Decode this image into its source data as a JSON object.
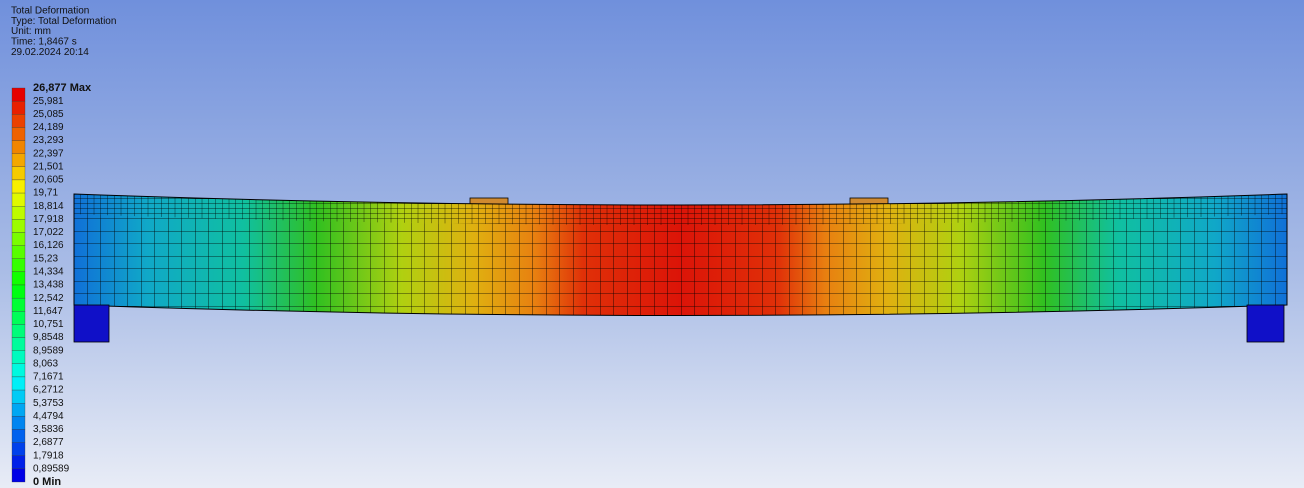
{
  "header": {
    "lines": [
      "Total Deformation",
      "Type: Total Deformation",
      "Unit: mm",
      "Time: 1,8467 s",
      "29.02.2024 20:14"
    ]
  },
  "legend": {
    "labels": [
      "26,877 Max",
      "25,981",
      "25,085",
      "24,189",
      "23,293",
      "22,397",
      "21,501",
      "20,605",
      "19,71",
      "18,814",
      "17,918",
      "17,022",
      "16,126",
      "15,23",
      "14,334",
      "13,438",
      "12,542",
      "11,647",
      "10,751",
      "9,8548",
      "8,9589",
      "8,063",
      "7,1671",
      "6,2712",
      "5,3753",
      "4,4794",
      "3,5836",
      "2,6877",
      "1,7918",
      "0,89589",
      "0 Min"
    ]
  }
}
